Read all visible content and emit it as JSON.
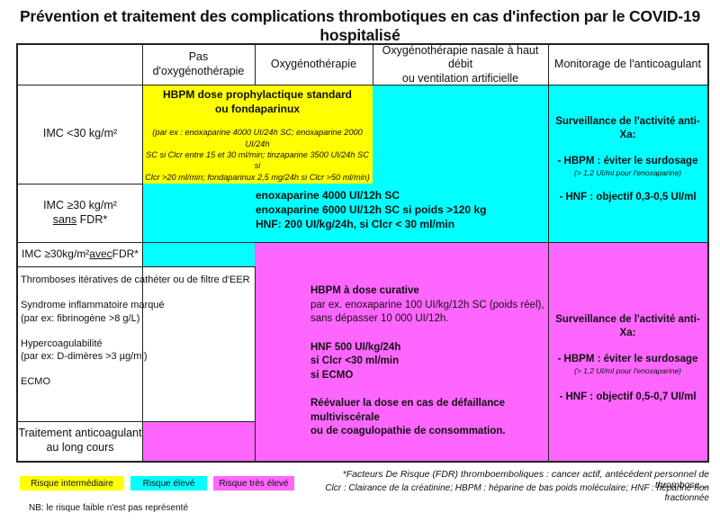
{
  "title": "Prévention et traitement des complications thrombotiques en cas d'infection par le COVID-19 hospitalisé",
  "colors": {
    "intermediaire": "#ffff00",
    "eleve": "#00ffff",
    "tres_eleve": "#ff66ff"
  },
  "headers": {
    "col1": "Pas d'oxygénothérapie",
    "col2": "Oxygénothérapie",
    "col3_line1": "Oxygénothérapie nasale à haut débit",
    "col3_line2": "ou ventilation artificielle",
    "col4": "Monitorage de l'anticoagulant"
  },
  "rows": {
    "imc_lt30": "IMC <30 kg/m²",
    "imc_ge30_line1": "IMC ≥30 kg/m²",
    "imc_ge30_line2_sans": "sans",
    "imc_ge30_line2_fdr": " FDR*",
    "imc_ge30_avec_pre": "IMC ≥30kg/m² ",
    "imc_ge30_avec_word": "avec",
    "imc_ge30_avec_post": " FDR*",
    "list_1": "Thromboses itératives de cathéter ou de filtre d'EER",
    "list_2a": "Syndrome inflammatoire marqué",
    "list_2b": "(par ex: fibrinogène >8 g/L)",
    "list_3a": "Hypercoagulabilité",
    "list_3b": "(par ex: D-dimères >3 µg/ml)",
    "list_4": "ECMO",
    "long_cours_line1": "Traitement anticoagulant",
    "long_cours_line2": "au long cours"
  },
  "yellow_cell": {
    "line1": "HBPM dose prophylactique standard",
    "line2": "ou fondaparinux",
    "detail1": "(par ex : enoxaparine 4000 UI/24h SC; enoxaparine 2000 UI/24h",
    "detail2": "SC si Clcr entre 15 et 30 ml/min; tinzaparine 3500 UI/24h SC si",
    "detail3": "Clcr >20 ml/min; fondaparinux 2,5 mg/24h si Clcr >50 ml/min)"
  },
  "cyan_cell": {
    "line1": "enoxaparine 4000 UI/12h SC",
    "line2": "enoxaparine 6000 UI/12h SC si poids >120 kg",
    "line3": "HNF: 200 UI/kg/24h, si Clcr < 30 ml/min"
  },
  "magenta_cell": {
    "line1": "HBPM à dose curative",
    "line2": "par ex. enoxaparine 100 UI/kg/12h SC (poids réel),",
    "line3": "sans dépasser 10 000 UI/12h.",
    "line4": "HNF 500 UI/kg/24h",
    "line5": "si Clcr <30 ml/min",
    "line6": "si ECMO",
    "line7": "Réévaluer la dose en cas de défaillance multiviscérale",
    "line8": "ou de coagulopathie de consommation."
  },
  "monitor_top": {
    "title": "Surveillance de l'activité anti-Xa:",
    "hbpm": "- HBPM : éviter le surdosage",
    "hbpm_note": "(> 1,2 UI/ml pour l'enoxaparine)",
    "hnf": "- HNF : objectif 0,3-0,5 UI/ml"
  },
  "monitor_bottom": {
    "title": "Surveillance de l'activité anti-Xa:",
    "hbpm": "- HBPM : éviter le surdosage",
    "hbpm_note": "(> 1,2 UI/ml pour l'enoxaparine)",
    "hnf": "-   HNF : objectif 0,5-0,7 UI/ml"
  },
  "legend": {
    "intermediaire": "Risque intermédiaire",
    "eleve": "Risque élevé",
    "tres_eleve": "Risque très élevé",
    "nb": "NB: le risque faible n'est pas représenté"
  },
  "footnotes": {
    "line1": "*Facteurs De Risque (FDR) thromboemboliques : cancer actif, antécédent personnel de thrombose…",
    "line2": "Clcr : Clairance de la créatinine; HBPM : héparine de bas poids moléculaire; HNF : héparine non fractionnée"
  }
}
